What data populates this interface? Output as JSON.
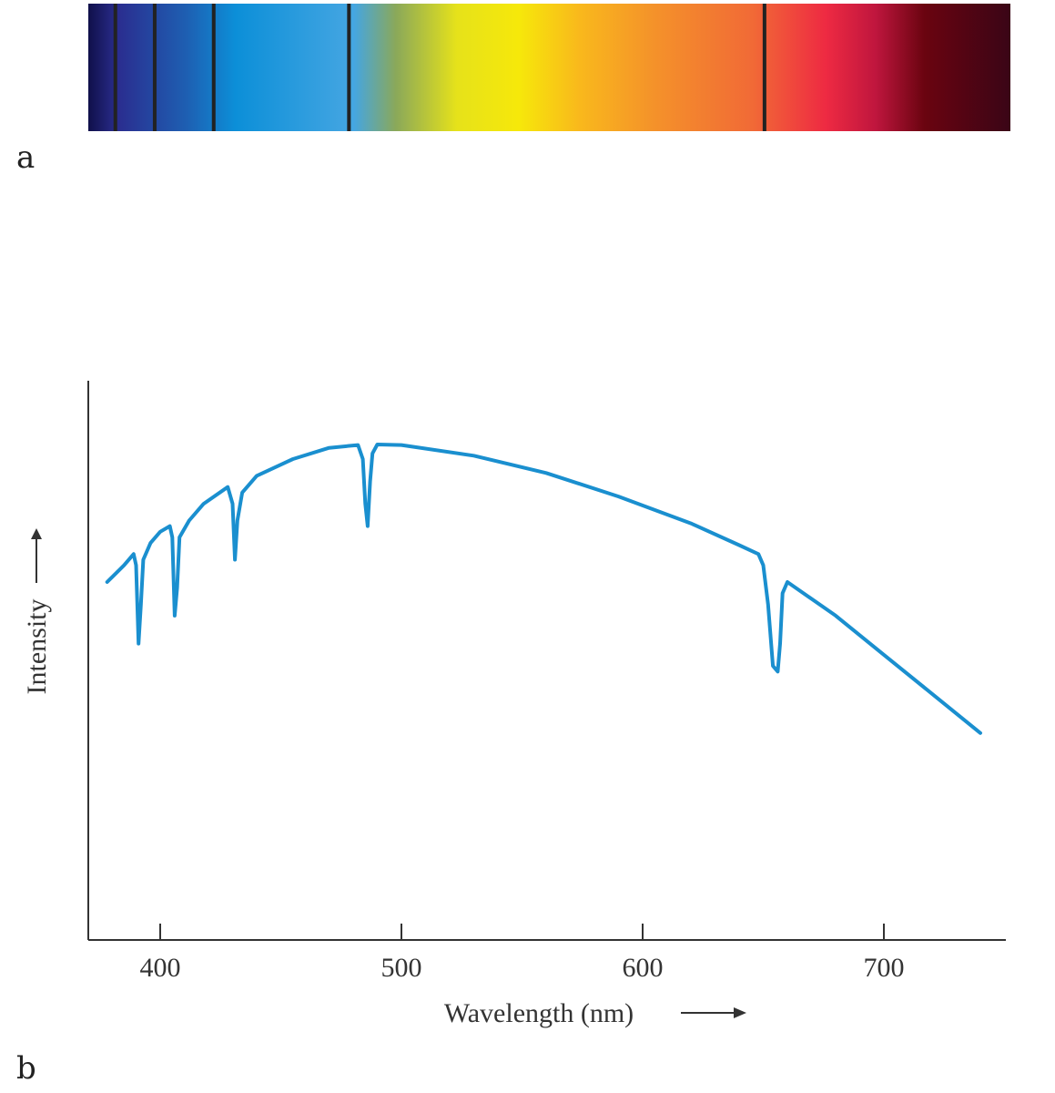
{
  "panels": {
    "a": "a",
    "b": "b"
  },
  "spectrum_bar": {
    "description_label": "",
    "range_nm": [
      380,
      755
    ],
    "colors": [
      "#10104a",
      "#2a2d8f",
      "#1e5fb2",
      "#0c8fd8",
      "#45a6e2",
      "#8aa85a",
      "#e6e21a",
      "#f6e80a",
      "#f9b81c",
      "#f4922a",
      "#f16a36",
      "#ee2a42",
      "#c0163e",
      "#6a0410",
      "#3a0516"
    ],
    "color_stops_nm": [
      380,
      392,
      420,
      440,
      488,
      505,
      530,
      555,
      580,
      610,
      650,
      680,
      700,
      720,
      755
    ]
  },
  "chart_data": {
    "type": "line",
    "title": "",
    "xlabel": "Wavelength (nm)",
    "ylabel": "Intensity",
    "xlabel_arrow": "→",
    "ylabel_arrow": "→",
    "xlim": [
      370,
      750
    ],
    "ylim": [
      0,
      100
    ],
    "xticks": [
      400,
      500,
      600,
      700
    ],
    "xtick_labels": [
      "400",
      "500",
      "600",
      "700"
    ],
    "absorption_lines_nm": [
      391,
      407,
      431,
      486,
      655
    ],
    "series": [
      {
        "name": "Intensity",
        "color": "#1a8fcf",
        "points": [
          [
            378,
            64
          ],
          [
            385,
            67
          ],
          [
            389,
            69
          ],
          [
            390,
            67
          ],
          [
            391,
            53
          ],
          [
            392,
            60
          ],
          [
            393,
            68
          ],
          [
            396,
            71
          ],
          [
            400,
            73
          ],
          [
            404,
            74
          ],
          [
            405,
            72
          ],
          [
            406,
            58
          ],
          [
            407,
            63
          ],
          [
            408,
            72
          ],
          [
            412,
            75
          ],
          [
            418,
            78
          ],
          [
            428,
            81
          ],
          [
            430,
            78
          ],
          [
            431,
            68
          ],
          [
            432,
            75
          ],
          [
            434,
            80
          ],
          [
            440,
            83
          ],
          [
            455,
            86
          ],
          [
            470,
            88
          ],
          [
            482,
            88.5
          ],
          [
            484,
            86
          ],
          [
            485,
            78
          ],
          [
            486,
            74
          ],
          [
            487,
            82
          ],
          [
            488,
            87
          ],
          [
            490,
            88.6
          ],
          [
            500,
            88.5
          ],
          [
            530,
            86.6
          ],
          [
            560,
            83.5
          ],
          [
            590,
            79.3
          ],
          [
            620,
            74.5
          ],
          [
            640,
            70.6
          ],
          [
            648,
            69
          ],
          [
            650,
            67
          ],
          [
            652,
            60
          ],
          [
            654,
            49
          ],
          [
            656,
            48
          ],
          [
            657,
            53
          ],
          [
            658,
            62
          ],
          [
            660,
            64
          ],
          [
            680,
            58
          ],
          [
            700,
            51
          ],
          [
            720,
            44
          ],
          [
            740,
            37
          ]
        ]
      }
    ]
  }
}
